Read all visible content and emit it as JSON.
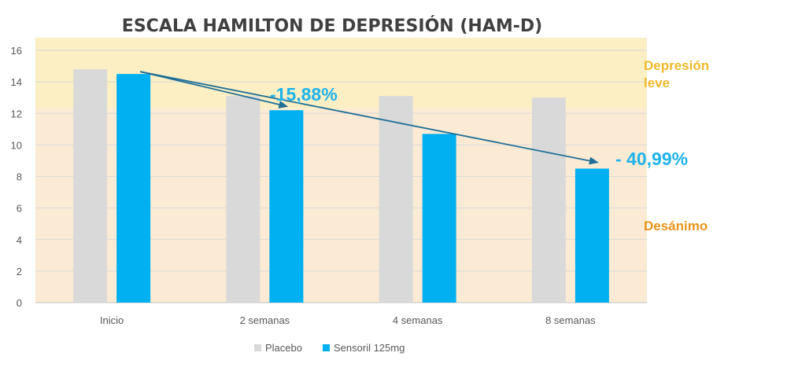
{
  "chart_data": {
    "type": "bar",
    "title": "ESCALA HAMILTON DE DEPRESIÓN (HAM-D)",
    "categories": [
      "Inicio",
      "2 semanas",
      "4 semanas",
      "8 semanas"
    ],
    "series": [
      {
        "name": "Placebo",
        "values": [
          14.8,
          13.1,
          13.1,
          13.0
        ],
        "color": "#d9d9d9"
      },
      {
        "name": "Sensoril 125mg",
        "values": [
          14.5,
          12.2,
          10.7,
          8.5
        ],
        "color": "#00b0f0"
      }
    ],
    "ylim": [
      0,
      16
    ],
    "yticks": [
      0,
      2,
      4,
      6,
      8,
      10,
      12,
      14,
      16
    ],
    "grid": true,
    "legend": "bottom",
    "zones": [
      {
        "label_lines": [
          "Depresión",
          "leve"
        ],
        "from": 12.3,
        "to": 16.8,
        "color": "#fcefc4",
        "text_color": "#f0b92a"
      },
      {
        "label_lines": [
          "Desánimo"
        ],
        "from": 0,
        "to": 12.3,
        "color": "#fcebd4",
        "text_color": "#e8941a"
      }
    ],
    "annotations": [
      {
        "text": "-15,88%",
        "from": [
          "Inicio",
          14.5
        ],
        "to": [
          "2 semanas",
          12.2
        ],
        "color": "#1fb3ea"
      },
      {
        "text": "- 40,99%",
        "from": [
          "Inicio",
          14.5
        ],
        "to": [
          "8 semanas",
          8.9
        ],
        "color": "#1fb3ea"
      }
    ],
    "arrow_color": "#1f6f97"
  }
}
